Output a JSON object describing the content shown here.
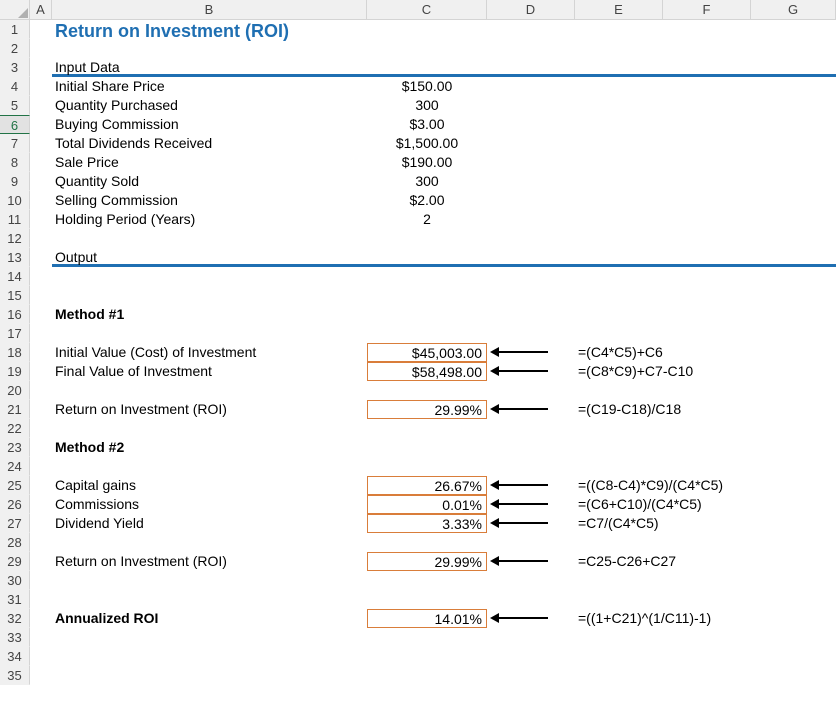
{
  "columns": [
    "A",
    "B",
    "C",
    "D",
    "E",
    "F",
    "G"
  ],
  "title": "Return on Investment (ROI)",
  "section_input": "Input Data",
  "section_output": "Output",
  "input_rows": [
    {
      "label": "Initial Share Price",
      "value": "$150.00"
    },
    {
      "label": "Quantity Purchased",
      "value": "300"
    },
    {
      "label": "Buying Commission",
      "value": "$3.00"
    },
    {
      "label": "Total Dividends Received",
      "value": "$1,500.00"
    },
    {
      "label": "Sale Price",
      "value": "$190.00"
    },
    {
      "label": "Quantity Sold",
      "value": "300"
    },
    {
      "label": "Selling Commission",
      "value": "$2.00"
    },
    {
      "label": "Holding Period (Years)",
      "value": "2"
    }
  ],
  "method1_title": "Method #1",
  "method1_rows": [
    {
      "label": "Initial Value (Cost) of Investment",
      "value": "$45,003.00",
      "formula": "=(C4*C5)+C6"
    },
    {
      "label": "Final Value of Investment",
      "value": "$58,498.00",
      "formula": "=(C8*C9)+C7-C10"
    }
  ],
  "method1_roi": {
    "label": "Return on Investment (ROI)",
    "value": "29.99%",
    "formula": "=(C19-C18)/C18"
  },
  "method2_title": "Method #2",
  "method2_rows": [
    {
      "label": "Capital gains",
      "value": "26.67%",
      "formula": "=((C8-C4)*C9)/(C4*C5)"
    },
    {
      "label": "Commissions",
      "value": "0.01%",
      "formula": "=(C6+C10)/(C4*C5)"
    },
    {
      "label": "Dividend Yield",
      "value": "3.33%",
      "formula": "=C7/(C4*C5)"
    }
  ],
  "method2_roi": {
    "label": "Return on Investment (ROI)",
    "value": "29.99%",
    "formula": "=C25-C26+C27"
  },
  "annualized": {
    "label": "Annualized ROI",
    "value": "14.01%",
    "formula": "=((1+C21)^(1/C11)-1)"
  },
  "selected_row": 6,
  "colors": {
    "accent": "#1f6fb2",
    "outline": "#d97d3a",
    "header_bg": "#f0f0f0",
    "header_border": "#d4d4d4"
  }
}
